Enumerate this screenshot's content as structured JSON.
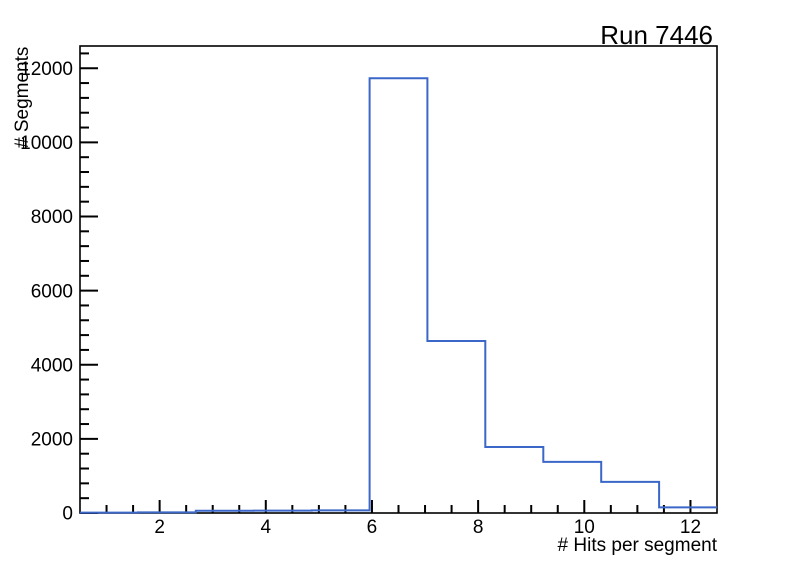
{
  "title": "Run 7446",
  "chart_data": {
    "type": "histogram-step",
    "title": "Run 7446",
    "xlabel": "# Hits per segment",
    "ylabel": "# Segments",
    "xlim": [
      0.5,
      12.5
    ],
    "ylim": [
      0,
      12600
    ],
    "bin_edges": [
      0.5,
      1.591,
      2.682,
      3.773,
      4.864,
      5.955,
      7.045,
      8.136,
      9.227,
      10.318,
      11.409,
      12.5
    ],
    "counts": [
      10,
      15,
      60,
      65,
      70,
      11730,
      4640,
      1780,
      1380,
      840,
      150
    ],
    "x_major_ticks": [
      2,
      4,
      6,
      8,
      10,
      12
    ],
    "x_minor_step": 0.5,
    "y_major_ticks": [
      0,
      2000,
      4000,
      6000,
      8000,
      10000,
      12000
    ],
    "y_minor_step": 400,
    "grid": false,
    "line_color": "#3a67c8",
    "axis_color": "#000000",
    "background_color": "#ffffff"
  }
}
